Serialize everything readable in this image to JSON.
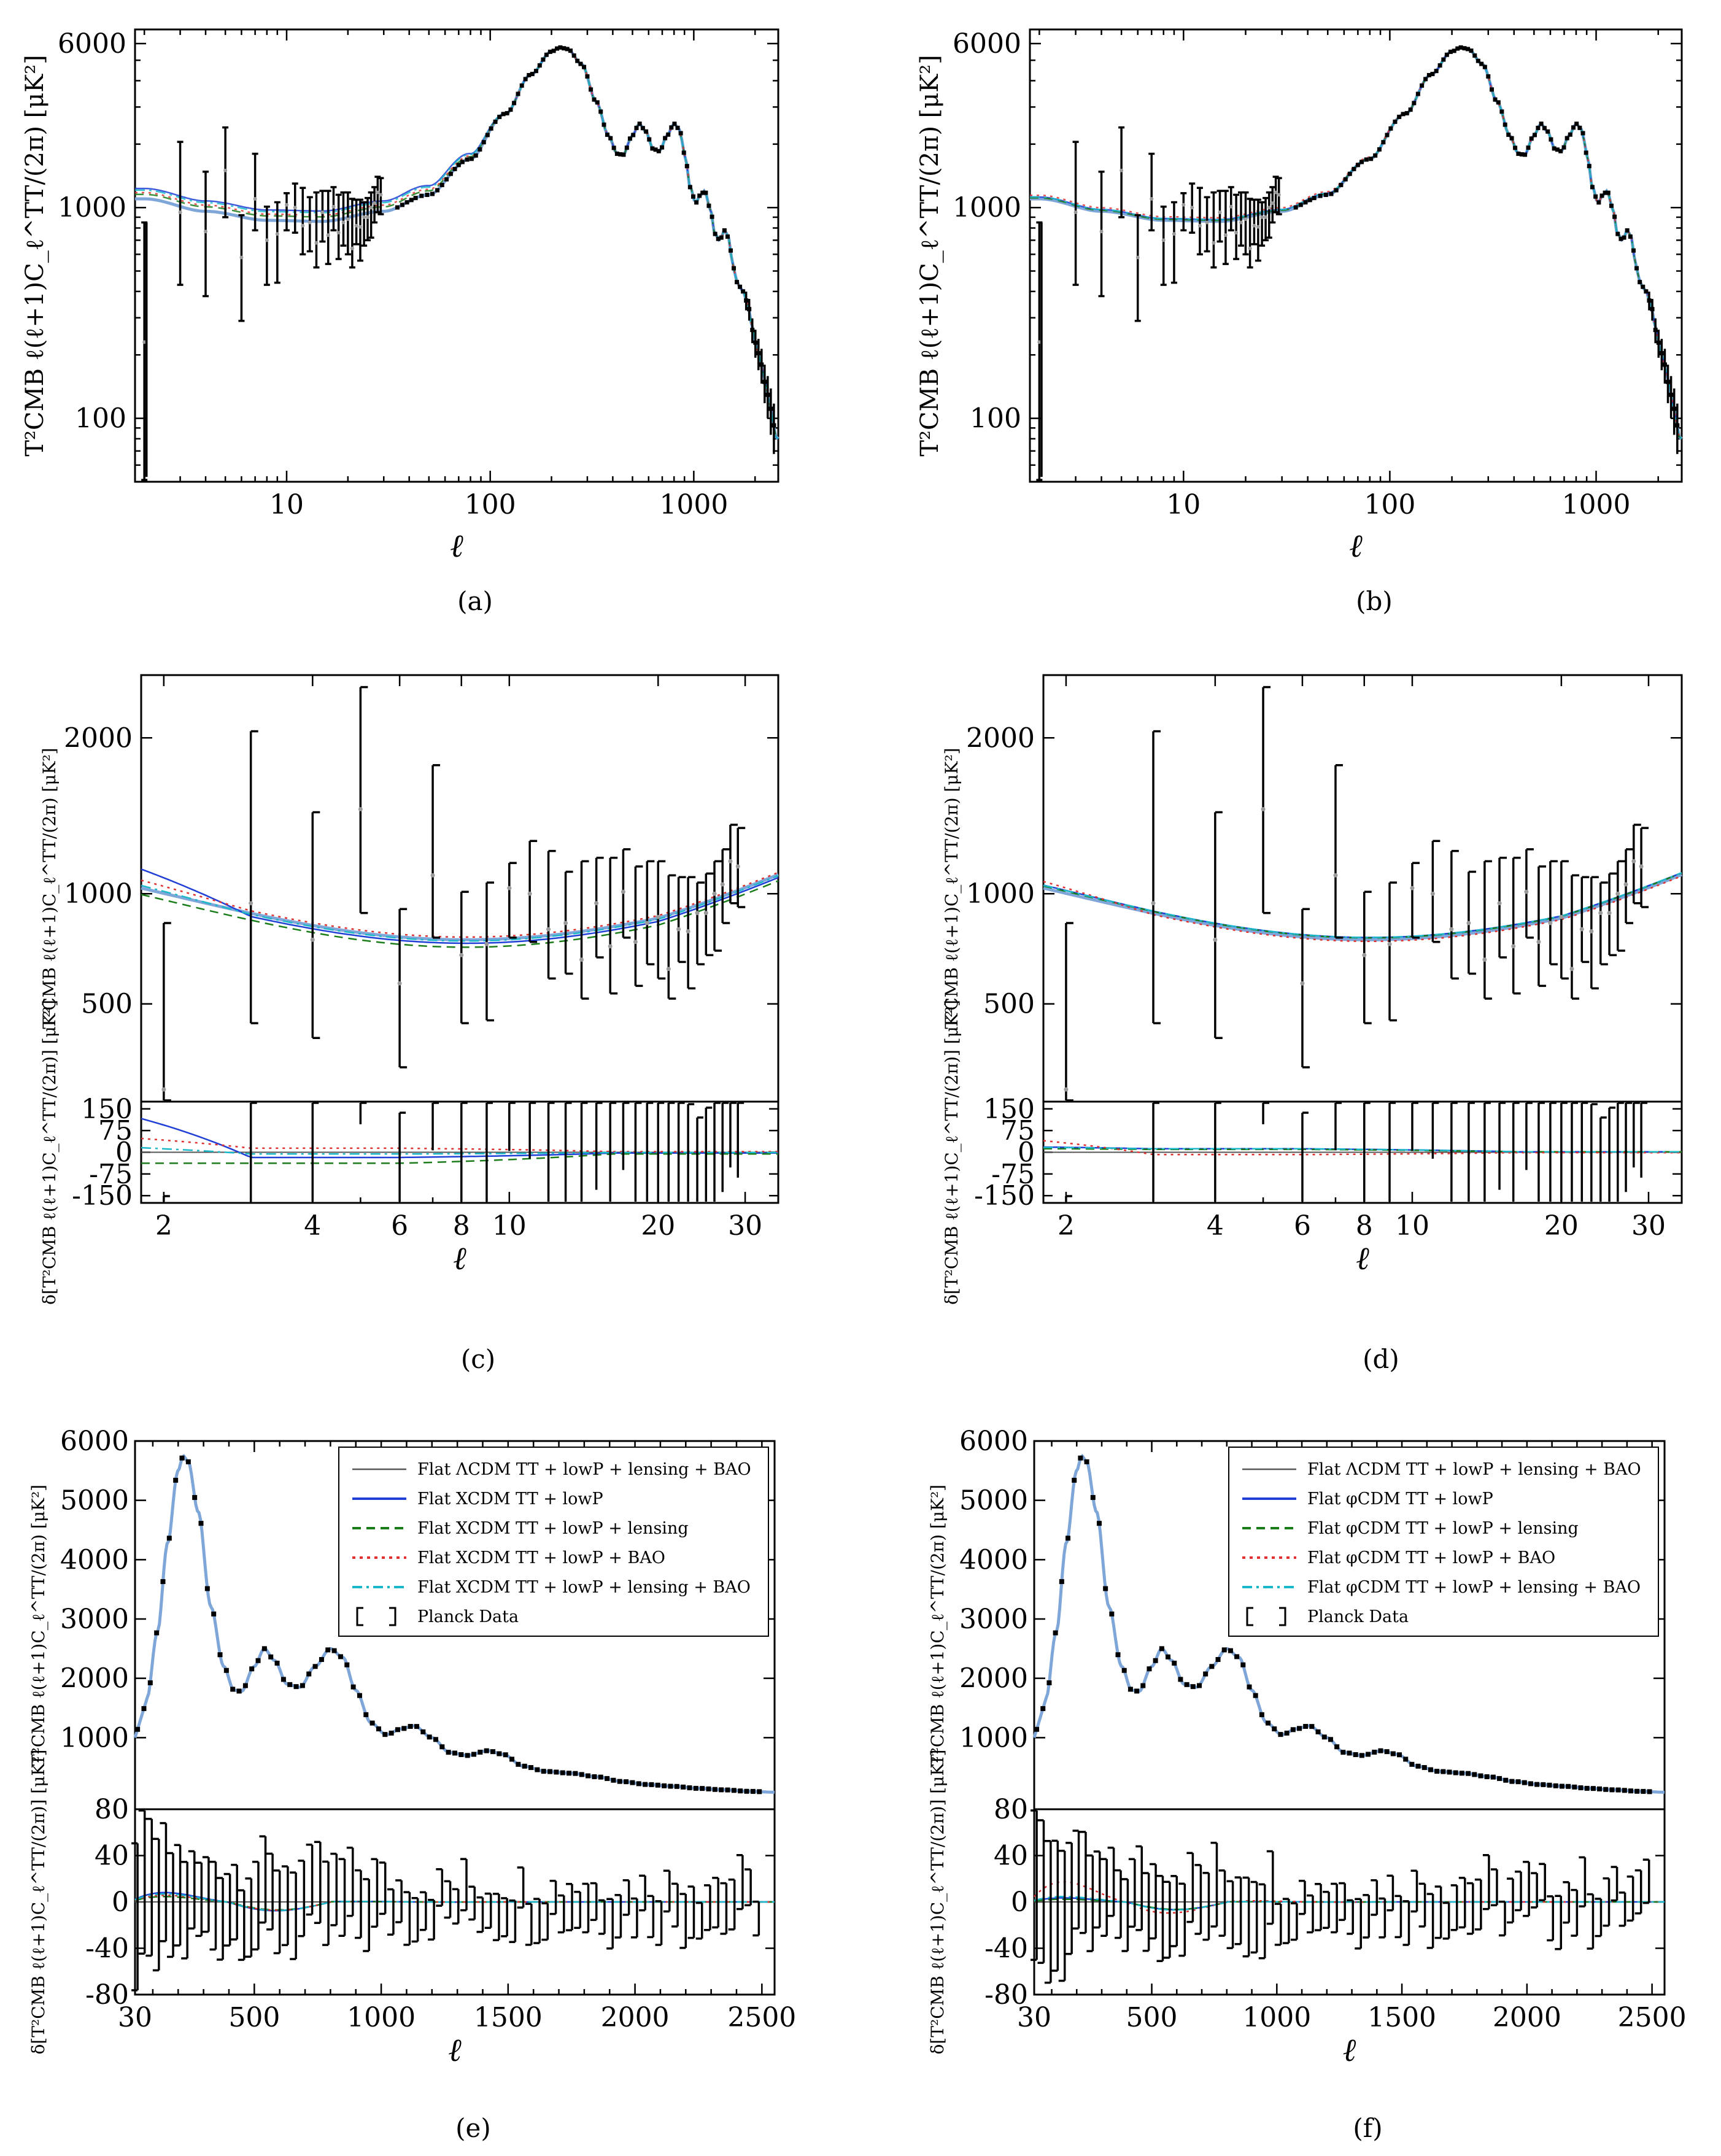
{
  "colors": {
    "lcdm": "#555555",
    "tt_lowp": "#1f3fd6",
    "tt_lowp_lensing": "#1a7d1a",
    "tt_lowp_bao": "#e03030",
    "tt_lowp_lensing_bao": "#1ab8c8",
    "blend": "#7fa6d8",
    "data": "#000000"
  },
  "chart_data": [
    {
      "id": "a",
      "caption": "(a)",
      "type": "line",
      "model": "XCDM",
      "xscale": "log",
      "yscale": "log",
      "xlim": [
        1.8,
        2600
      ],
      "ylim": [
        50,
        7000
      ],
      "xlabel": "ℓ",
      "ylabel": "T²CMB ℓ(ℓ+1)C_ℓ^TT/(2π) [μK²]",
      "xticks": [
        "10",
        "100",
        "1000"
      ],
      "yticks": [
        "100",
        "1000",
        "6000"
      ],
      "xtick_values": [
        10,
        100,
        1000
      ],
      "ytick_values": [
        100,
        1000,
        6000
      ],
      "main_variants": {
        "tt_lowp": 1.12,
        "tt_lowp_lensing": 1.05,
        "tt_lowp_bao": 1.07,
        "tt_lowp_lensing_bao": 1.1
      }
    },
    {
      "id": "b",
      "caption": "(b)",
      "type": "line",
      "model": "φCDM",
      "xscale": "log",
      "yscale": "log",
      "xlim": [
        1.8,
        2600
      ],
      "ylim": [
        50,
        7000
      ],
      "xlabel": "ℓ",
      "ylabel": "T²CMB ℓ(ℓ+1)C_ℓ^TT/(2π) [μK²]",
      "xticks": [
        "10",
        "100",
        "1000"
      ],
      "yticks": [
        "100",
        "1000",
        "6000"
      ],
      "xtick_values": [
        10,
        100,
        1000
      ],
      "ytick_values": [
        100,
        1000,
        6000
      ],
      "main_variants": {
        "tt_lowp": 1.02,
        "tt_lowp_lensing": 1.01,
        "tt_lowp_bao": 1.04,
        "tt_lowp_lensing_bao": 1.02
      }
    },
    {
      "id": "c",
      "caption": "(c)",
      "type": "line",
      "model": "XCDM",
      "xscale": "log",
      "xlim": [
        1.8,
        35
      ],
      "ylim": [
        200,
        2500
      ],
      "xlabel": "ℓ",
      "ylabel": "T²CMB ℓ(ℓ+1)C_ℓ^TT/(2π) [μK²]",
      "resid_ylabel": "δ[T²CMB ℓ(ℓ+1)C_ℓ^TT/(2π)] [μK²]",
      "xticks": [
        "2",
        "4",
        "6",
        "8",
        "10",
        "20",
        "30"
      ],
      "xtick_values": [
        2,
        4,
        6,
        8,
        10,
        20,
        30
      ],
      "yticks": [
        "500",
        "1000",
        "2000"
      ],
      "ytick_values": [
        500,
        1000,
        2000
      ],
      "resid_ylim": [
        -175,
        175
      ],
      "resid_yticks": [
        "150",
        "75",
        "0",
        "-75",
        "-150"
      ],
      "resid_ytick_values": [
        150,
        75,
        0,
        -75,
        -150
      ],
      "low_variants": {
        "tt_lowp": {
          "a": 112,
          "b": -18
        },
        "tt_lowp_lensing": {
          "a": 0,
          "b": -38
        },
        "tt_lowp_bao": {
          "a": 28,
          "b": 14
        },
        "tt_lowp_lensing_bao": {
          "a": 18,
          "b": -6
        }
      },
      "low_data": [
        {
          "l": 2,
          "v": 230,
          "lo": 40,
          "hi": 850
        },
        {
          "l": 3,
          "v": 950,
          "lo": 430,
          "hi": 2050
        },
        {
          "l": 4,
          "v": 770,
          "lo": 380,
          "hi": 1480
        },
        {
          "l": 5,
          "v": 1500,
          "lo": 900,
          "hi": 2400
        },
        {
          "l": 6,
          "v": 580,
          "lo": 290,
          "hi": 920
        },
        {
          "l": 7,
          "v": 1100,
          "lo": 780,
          "hi": 1800
        },
        {
          "l": 8,
          "v": 700,
          "lo": 430,
          "hi": 1010
        },
        {
          "l": 9,
          "v": 750,
          "lo": 440,
          "hi": 1060
        },
        {
          "l": 10,
          "v": 1030,
          "lo": 780,
          "hi": 1170
        },
        {
          "l": 11,
          "v": 1000,
          "lo": 760,
          "hi": 1300
        },
        {
          "l": 12,
          "v": 820,
          "lo": 600,
          "hi": 1240
        },
        {
          "l": 13,
          "v": 850,
          "lo": 620,
          "hi": 1120
        },
        {
          "l": 14,
          "v": 680,
          "lo": 520,
          "hi": 1180
        },
        {
          "l": 15,
          "v": 950,
          "lo": 690,
          "hi": 1200
        },
        {
          "l": 16,
          "v": 740,
          "lo": 540,
          "hi": 1200
        },
        {
          "l": 17,
          "v": 1010,
          "lo": 780,
          "hi": 1250
        },
        {
          "l": 18,
          "v": 760,
          "lo": 570,
          "hi": 1150
        },
        {
          "l": 19,
          "v": 850,
          "lo": 660,
          "hi": 1180
        },
        {
          "l": 20,
          "v": 880,
          "lo": 600,
          "hi": 1180
        },
        {
          "l": 21,
          "v": 640,
          "lo": 520,
          "hi": 1100
        },
        {
          "l": 22,
          "v": 820,
          "lo": 670,
          "hi": 1090
        },
        {
          "l": 23,
          "v": 810,
          "lo": 560,
          "hi": 1090
        },
        {
          "l": 24,
          "v": 900,
          "lo": 660,
          "hi": 1060
        },
        {
          "l": 25,
          "v": 900,
          "lo": 700,
          "hi": 1110
        },
        {
          "l": 26,
          "v": 1000,
          "lo": 720,
          "hi": 1180
        },
        {
          "l": 27,
          "v": 1050,
          "lo": 850,
          "hi": 1250
        },
        {
          "l": 28,
          "v": 1180,
          "lo": 950,
          "hi": 1400
        },
        {
          "l": 29,
          "v": 1150,
          "lo": 930,
          "hi": 1380
        }
      ]
    },
    {
      "id": "d",
      "caption": "(d)",
      "type": "line",
      "model": "φCDM",
      "xscale": "log",
      "xlim": [
        1.8,
        35
      ],
      "ylim": [
        200,
        2500
      ],
      "xlabel": "ℓ",
      "ylabel": "T²CMB ℓ(ℓ+1)C_ℓ^TT/(2π) [μK²]",
      "resid_ylabel": "δ[T²CMB ℓ(ℓ+1)C_ℓ^TT/(2π)] [μK²]",
      "xticks": [
        "2",
        "4",
        "6",
        "8",
        "10",
        "20",
        "30"
      ],
      "xtick_values": [
        2,
        4,
        6,
        8,
        10,
        20,
        30
      ],
      "yticks": [
        "500",
        "1000",
        "2000"
      ],
      "ytick_values": [
        500,
        1000,
        2000
      ],
      "resid_ylim": [
        -175,
        175
      ],
      "resid_yticks": [
        "150",
        "75",
        "0",
        "-75",
        "-150"
      ],
      "resid_ytick_values": [
        150,
        75,
        0,
        -75,
        -150
      ],
      "low_variants": {
        "tt_lowp": {
          "a": 5,
          "b": 12
        },
        "tt_lowp_lensing": {
          "a": 2,
          "b": 10
        },
        "tt_lowp_bao": {
          "a": 40,
          "b": -8
        },
        "tt_lowp_lensing_bao": {
          "a": 4,
          "b": 12
        }
      },
      "low_data": [
        {
          "l": 2,
          "v": 230,
          "lo": 40,
          "hi": 850
        },
        {
          "l": 3,
          "v": 950,
          "lo": 430,
          "hi": 2050
        },
        {
          "l": 4,
          "v": 770,
          "lo": 380,
          "hi": 1480
        },
        {
          "l": 5,
          "v": 1500,
          "lo": 900,
          "hi": 2400
        },
        {
          "l": 6,
          "v": 580,
          "lo": 290,
          "hi": 920
        },
        {
          "l": 7,
          "v": 1100,
          "lo": 780,
          "hi": 1800
        },
        {
          "l": 8,
          "v": 700,
          "lo": 430,
          "hi": 1010
        },
        {
          "l": 9,
          "v": 750,
          "lo": 440,
          "hi": 1060
        },
        {
          "l": 10,
          "v": 1030,
          "lo": 780,
          "hi": 1170
        },
        {
          "l": 11,
          "v": 1000,
          "lo": 760,
          "hi": 1300
        },
        {
          "l": 12,
          "v": 820,
          "lo": 600,
          "hi": 1240
        },
        {
          "l": 13,
          "v": 850,
          "lo": 620,
          "hi": 1120
        },
        {
          "l": 14,
          "v": 680,
          "lo": 520,
          "hi": 1180
        },
        {
          "l": 15,
          "v": 950,
          "lo": 690,
          "hi": 1200
        },
        {
          "l": 16,
          "v": 740,
          "lo": 540,
          "hi": 1200
        },
        {
          "l": 17,
          "v": 1010,
          "lo": 780,
          "hi": 1250
        },
        {
          "l": 18,
          "v": 760,
          "lo": 570,
          "hi": 1150
        },
        {
          "l": 19,
          "v": 850,
          "lo": 660,
          "hi": 1180
        },
        {
          "l": 20,
          "v": 880,
          "lo": 600,
          "hi": 1180
        },
        {
          "l": 21,
          "v": 640,
          "lo": 520,
          "hi": 1100
        },
        {
          "l": 22,
          "v": 820,
          "lo": 670,
          "hi": 1090
        },
        {
          "l": 23,
          "v": 810,
          "lo": 560,
          "hi": 1090
        },
        {
          "l": 24,
          "v": 900,
          "lo": 660,
          "hi": 1060
        },
        {
          "l": 25,
          "v": 900,
          "lo": 700,
          "hi": 1110
        },
        {
          "l": 26,
          "v": 1000,
          "lo": 720,
          "hi": 1180
        },
        {
          "l": 27,
          "v": 1050,
          "lo": 850,
          "hi": 1250
        },
        {
          "l": 28,
          "v": 1180,
          "lo": 950,
          "hi": 1400
        },
        {
          "l": 29,
          "v": 1150,
          "lo": 930,
          "hi": 1380
        }
      ]
    },
    {
      "id": "e",
      "caption": "(e)",
      "type": "line",
      "model": "XCDM",
      "xlim": [
        30,
        2550
      ],
      "ylim": [
        0,
        6000
      ],
      "xlabel": "ℓ",
      "ylabel": "T²CMB ℓ(ℓ+1)C_ℓ^TT/(2π) [μK²]",
      "resid_ylabel": "δ[T²CMB ℓ(ℓ+1)C_ℓ^TT/(2π)] [μK²]",
      "xticks": [
        "30",
        "500",
        "1000",
        "1500",
        "2000",
        "2500"
      ],
      "xtick_values": [
        30,
        500,
        1000,
        1500,
        2000,
        2500
      ],
      "yticks": [
        "1000",
        "2000",
        "3000",
        "4000",
        "5000",
        "6000"
      ],
      "ytick_values": [
        1000,
        2000,
        3000,
        4000,
        5000,
        6000
      ],
      "resid_ylim": [
        -80,
        80
      ],
      "resid_yticks": [
        "80",
        "40",
        "0",
        "-40",
        "-80"
      ],
      "resid_ytick_values": [
        80,
        40,
        0,
        -40,
        -80
      ],
      "high_variants": {
        "tt_lowp": 14,
        "tt_lowp_lensing": 8,
        "tt_lowp_bao": 10,
        "tt_lowp_lensing_bao": 12
      },
      "legend": {
        "location": "top-right",
        "entries": [
          {
            "label": "Flat ΛCDM TT + lowP + lensing + BAO",
            "style": "solid",
            "color_key": "lcdm"
          },
          {
            "label": "Flat XCDM TT + lowP",
            "style": "solid",
            "color_key": "tt_lowp"
          },
          {
            "label": "Flat XCDM TT + lowP + lensing",
            "style": "dashed",
            "color_key": "tt_lowp_lensing"
          },
          {
            "label": "Flat XCDM TT + lowP + BAO",
            "style": "dotted",
            "color_key": "tt_lowp_bao"
          },
          {
            "label": "Flat XCDM TT + lowP + lensing + BAO",
            "style": "dashdot",
            "color_key": "tt_lowp_lensing_bao"
          },
          {
            "label": "Planck Data",
            "style": "errorbar",
            "color_key": "data"
          }
        ]
      }
    },
    {
      "id": "f",
      "caption": "(f)",
      "type": "line",
      "model": "φCDM",
      "xlim": [
        30,
        2550
      ],
      "ylim": [
        0,
        6000
      ],
      "xlabel": "ℓ",
      "ylabel": "T²CMB ℓ(ℓ+1)C_ℓ^TT/(2π) [μK²]",
      "resid_ylabel": "δ[T²CMB ℓ(ℓ+1)C_ℓ^TT/(2π)] [μK²]",
      "xticks": [
        "30",
        "500",
        "1000",
        "1500",
        "2000",
        "2500"
      ],
      "xtick_values": [
        30,
        500,
        1000,
        1500,
        2000,
        2500
      ],
      "yticks": [
        "1000",
        "2000",
        "3000",
        "4000",
        "5000",
        "6000"
      ],
      "ytick_values": [
        1000,
        2000,
        3000,
        4000,
        5000,
        6000
      ],
      "resid_ylim": [
        -80,
        80
      ],
      "resid_yticks": [
        "80",
        "40",
        "0",
        "-40",
        "-80"
      ],
      "resid_ytick_values": [
        80,
        40,
        0,
        -40,
        -80
      ],
      "high_variants": {
        "tt_lowp": 6,
        "tt_lowp_lensing": 4,
        "tt_lowp_bao": 30,
        "tt_lowp_lensing_bao": 8
      },
      "legend": {
        "location": "top-right",
        "entries": [
          {
            "label": "Flat ΛCDM TT + lowP + lensing + BAO",
            "style": "solid",
            "color_key": "lcdm"
          },
          {
            "label": "Flat φCDM TT + lowP",
            "style": "solid",
            "color_key": "tt_lowp"
          },
          {
            "label": "Flat φCDM TT + lowP + lensing",
            "style": "dashed",
            "color_key": "tt_lowp_lensing"
          },
          {
            "label": "Flat φCDM TT + lowP + BAO",
            "style": "dotted",
            "color_key": "tt_lowp_bao"
          },
          {
            "label": "Flat φCDM TT + lowP + lensing + BAO",
            "style": "dashdot",
            "color_key": "tt_lowp_lensing_bao"
          },
          {
            "label": "Planck Data",
            "style": "errorbar",
            "color_key": "data"
          }
        ]
      }
    }
  ],
  "spectrum_model": {
    "description": "Best-fit TT power spectrum shape in μK² (l, value) used for all panels",
    "points": [
      [
        2,
        1100
      ],
      [
        4,
        960
      ],
      [
        8,
        870
      ],
      [
        15,
        860
      ],
      [
        30,
        960
      ],
      [
        50,
        1150
      ],
      [
        80,
        1700
      ],
      [
        120,
        2800
      ],
      [
        160,
        4300
      ],
      [
        200,
        5500
      ],
      [
        220,
        5750
      ],
      [
        240,
        5650
      ],
      [
        280,
        4800
      ],
      [
        330,
        3200
      ],
      [
        380,
        2200
      ],
      [
        420,
        1800
      ],
      [
        450,
        1780
      ],
      [
        500,
        2200
      ],
      [
        540,
        2500
      ],
      [
        580,
        2300
      ],
      [
        630,
        1900
      ],
      [
        680,
        1850
      ],
      [
        740,
        2200
      ],
      [
        800,
        2500
      ],
      [
        850,
        2350
      ],
      [
        900,
        1800
      ],
      [
        960,
        1250
      ],
      [
        1020,
        1050
      ],
      [
        1080,
        1150
      ],
      [
        1130,
        1200
      ],
      [
        1200,
        1000
      ],
      [
        1270,
        750
      ],
      [
        1340,
        700
      ],
      [
        1420,
        780
      ],
      [
        1480,
        720
      ],
      [
        1560,
        520
      ],
      [
        1650,
        430
      ],
      [
        1750,
        400
      ],
      [
        1850,
        340
      ],
      [
        1950,
        260
      ],
      [
        2050,
        210
      ],
      [
        2150,
        180
      ],
      [
        2250,
        145
      ],
      [
        2350,
        120
      ],
      [
        2450,
        95
      ],
      [
        2550,
        80
      ]
    ]
  }
}
